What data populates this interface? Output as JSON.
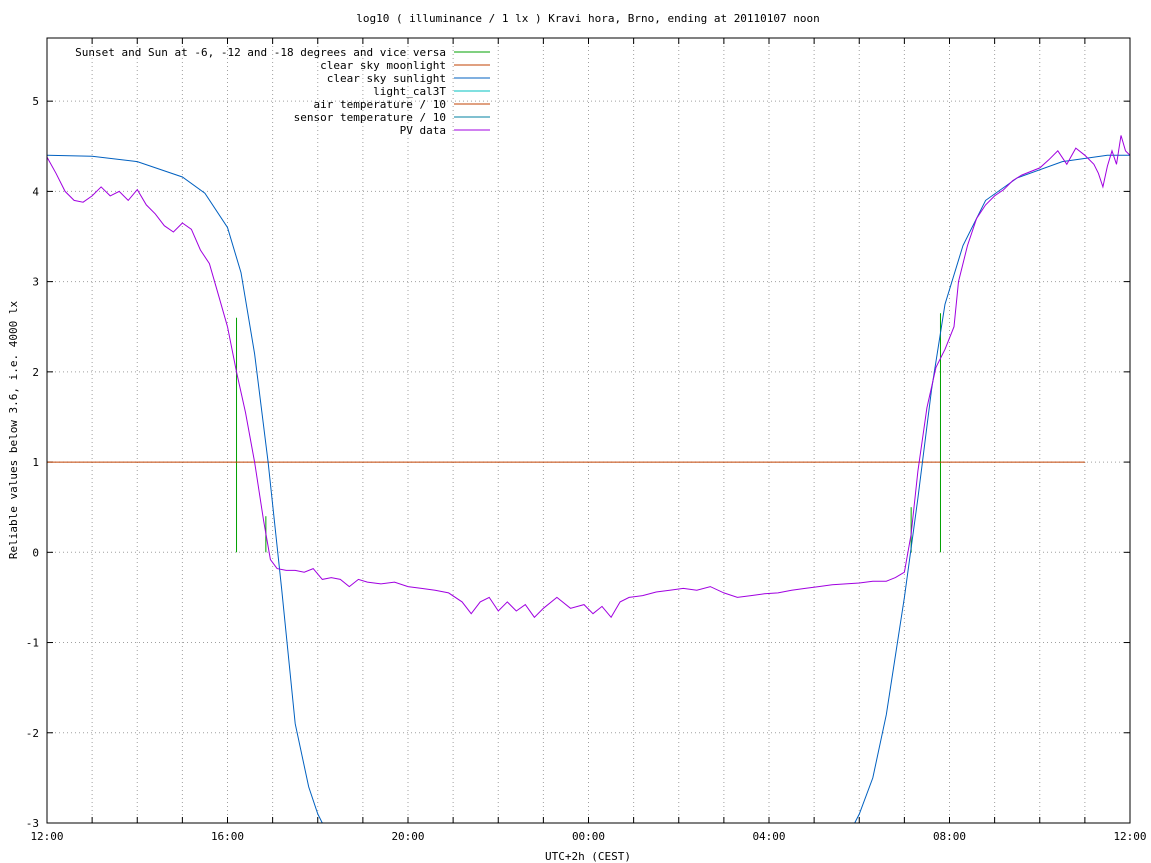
{
  "chart_data": {
    "type": "line",
    "title": "log10 ( illuminance / 1 lx ) Kravi hora, Brno, ending at 20110107 noon",
    "xlabel": "UTC+2h (CEST)",
    "ylabel": "Reliable values below 3.6, i.e. 4000 lx",
    "xlim": [
      12,
      36
    ],
    "ylim": [
      -3,
      5.7
    ],
    "grid": true,
    "legend_position": "top-left",
    "x_ticks": [
      {
        "value": 12,
        "label": "12:00"
      },
      {
        "value": 16,
        "label": "16:00"
      },
      {
        "value": 20,
        "label": "20:00"
      },
      {
        "value": 24,
        "label": "00:00"
      },
      {
        "value": 28,
        "label": "04:00"
      },
      {
        "value": 32,
        "label": "08:00"
      },
      {
        "value": 36,
        "label": "12:00"
      }
    ],
    "x_minor_ticks": [
      13,
      14,
      15,
      17,
      18,
      19,
      21,
      22,
      23,
      25,
      26,
      27,
      29,
      30,
      31,
      33,
      34,
      35
    ],
    "y_ticks": [
      {
        "value": -3,
        "label": "-3"
      },
      {
        "value": -2,
        "label": "-2"
      },
      {
        "value": -1,
        "label": "-1"
      },
      {
        "value": 0,
        "label": "0"
      },
      {
        "value": 1,
        "label": "1"
      },
      {
        "value": 2,
        "label": "2"
      },
      {
        "value": 3,
        "label": "3"
      },
      {
        "value": 4,
        "label": "4"
      },
      {
        "value": 5,
        "label": "5"
      }
    ],
    "series": [
      {
        "name": "Sunset and Sun at -6, -12 and -18 degrees and vice versa",
        "color": "#00a000",
        "kind": "impulses",
        "points": [
          [
            16.2,
            2.6
          ],
          [
            16.85,
            0.4
          ],
          [
            17.5,
            0
          ],
          [
            18.15,
            0
          ],
          [
            29.85,
            0
          ],
          [
            30.5,
            0
          ],
          [
            31.15,
            0.5
          ],
          [
            31.8,
            2.65
          ]
        ]
      },
      {
        "name": "clear sky moonlight",
        "color": "#c04000",
        "kind": "line",
        "points": [
          [
            12,
            1
          ],
          [
            35.0,
            1
          ]
        ]
      },
      {
        "name": "clear sky sunlight",
        "color": "#0060c0",
        "kind": "line",
        "points": [
          [
            12,
            4.4
          ],
          [
            13,
            4.39
          ],
          [
            14,
            4.33
          ],
          [
            15,
            4.16
          ],
          [
            15.5,
            3.98
          ],
          [
            16,
            3.6
          ],
          [
            16.3,
            3.1
          ],
          [
            16.6,
            2.2
          ],
          [
            16.9,
            1.0
          ],
          [
            17.2,
            -0.4
          ],
          [
            17.5,
            -1.9
          ],
          [
            17.8,
            -2.6
          ],
          [
            18.0,
            -2.9
          ],
          [
            18.1,
            -3.0
          ]
        ]
      },
      {
        "name": "clear sky sunlight",
        "color": "#0060c0",
        "kind": "line",
        "points": [
          [
            29.9,
            -3.0
          ],
          [
            30.0,
            -2.9
          ],
          [
            30.3,
            -2.5
          ],
          [
            30.6,
            -1.8
          ],
          [
            31.0,
            -0.5
          ],
          [
            31.3,
            0.6
          ],
          [
            31.6,
            1.8
          ],
          [
            31.9,
            2.75
          ],
          [
            32.3,
            3.4
          ],
          [
            32.8,
            3.9
          ],
          [
            33.5,
            4.15
          ],
          [
            34.5,
            4.33
          ],
          [
            35.5,
            4.4
          ],
          [
            36,
            4.4
          ]
        ]
      },
      {
        "name": "light_cal3T",
        "color": "#00c0c0",
        "kind": "line",
        "points": []
      },
      {
        "name": "air temperature / 10",
        "color": "#c04000",
        "kind": "line",
        "points": []
      },
      {
        "name": "sensor temperature / 10",
        "color": "#0080a0",
        "kind": "line",
        "points": []
      },
      {
        "name": "PV data",
        "color": "#a000e0",
        "kind": "line",
        "points": [
          [
            12.0,
            4.38
          ],
          [
            12.2,
            4.2
          ],
          [
            12.4,
            4.0
          ],
          [
            12.6,
            3.9
          ],
          [
            12.8,
            3.88
          ],
          [
            13.0,
            3.95
          ],
          [
            13.2,
            4.05
          ],
          [
            13.4,
            3.95
          ],
          [
            13.6,
            4.0
          ],
          [
            13.8,
            3.9
          ],
          [
            14.0,
            4.02
          ],
          [
            14.2,
            3.85
          ],
          [
            14.4,
            3.75
          ],
          [
            14.6,
            3.62
          ],
          [
            14.8,
            3.55
          ],
          [
            15.0,
            3.65
          ],
          [
            15.2,
            3.58
          ],
          [
            15.4,
            3.35
          ],
          [
            15.6,
            3.2
          ],
          [
            15.8,
            2.85
          ],
          [
            16.0,
            2.5
          ],
          [
            16.2,
            2.0
          ],
          [
            16.4,
            1.55
          ],
          [
            16.6,
            1.0
          ],
          [
            16.8,
            0.35
          ],
          [
            16.95,
            -0.08
          ],
          [
            17.1,
            -0.18
          ],
          [
            17.3,
            -0.2
          ],
          [
            17.5,
            -0.2
          ],
          [
            17.7,
            -0.22
          ],
          [
            17.9,
            -0.18
          ],
          [
            18.1,
            -0.3
          ],
          [
            18.3,
            -0.28
          ],
          [
            18.5,
            -0.3
          ],
          [
            18.7,
            -0.38
          ],
          [
            18.9,
            -0.3
          ],
          [
            19.1,
            -0.33
          ],
          [
            19.4,
            -0.35
          ],
          [
            19.7,
            -0.33
          ],
          [
            20.0,
            -0.38
          ],
          [
            20.3,
            -0.4
          ],
          [
            20.6,
            -0.42
          ],
          [
            20.9,
            -0.45
          ],
          [
            21.2,
            -0.55
          ],
          [
            21.4,
            -0.68
          ],
          [
            21.6,
            -0.55
          ],
          [
            21.8,
            -0.5
          ],
          [
            22.0,
            -0.65
          ],
          [
            22.2,
            -0.55
          ],
          [
            22.4,
            -0.65
          ],
          [
            22.6,
            -0.58
          ],
          [
            22.8,
            -0.72
          ],
          [
            23.0,
            -0.62
          ],
          [
            23.3,
            -0.5
          ],
          [
            23.6,
            -0.62
          ],
          [
            23.9,
            -0.58
          ],
          [
            24.1,
            -0.68
          ],
          [
            24.3,
            -0.6
          ],
          [
            24.5,
            -0.72
          ],
          [
            24.7,
            -0.55
          ],
          [
            24.9,
            -0.5
          ],
          [
            25.2,
            -0.48
          ],
          [
            25.5,
            -0.44
          ],
          [
            25.8,
            -0.42
          ],
          [
            26.1,
            -0.4
          ],
          [
            26.4,
            -0.42
          ],
          [
            26.7,
            -0.38
          ],
          [
            27.0,
            -0.45
          ],
          [
            27.3,
            -0.5
          ],
          [
            27.6,
            -0.48
          ],
          [
            27.9,
            -0.46
          ],
          [
            28.2,
            -0.45
          ],
          [
            28.5,
            -0.42
          ],
          [
            28.8,
            -0.4
          ],
          [
            29.1,
            -0.38
          ],
          [
            29.4,
            -0.36
          ],
          [
            29.7,
            -0.35
          ],
          [
            30.0,
            -0.34
          ],
          [
            30.3,
            -0.32
          ],
          [
            30.6,
            -0.32
          ],
          [
            30.8,
            -0.28
          ],
          [
            31.0,
            -0.22
          ],
          [
            31.15,
            0.2
          ],
          [
            31.3,
            0.9
          ],
          [
            31.5,
            1.6
          ],
          [
            31.7,
            2.05
          ],
          [
            31.9,
            2.25
          ],
          [
            32.1,
            2.5
          ],
          [
            32.2,
            3.0
          ],
          [
            32.4,
            3.4
          ],
          [
            32.6,
            3.7
          ],
          [
            32.8,
            3.85
          ],
          [
            33.0,
            3.95
          ],
          [
            33.2,
            4.02
          ],
          [
            33.4,
            4.12
          ],
          [
            33.6,
            4.18
          ],
          [
            33.8,
            4.22
          ],
          [
            34.0,
            4.26
          ],
          [
            34.2,
            4.35
          ],
          [
            34.4,
            4.45
          ],
          [
            34.6,
            4.3
          ],
          [
            34.8,
            4.48
          ],
          [
            35.0,
            4.4
          ],
          [
            35.2,
            4.3
          ],
          [
            35.3,
            4.2
          ],
          [
            35.4,
            4.05
          ],
          [
            35.5,
            4.28
          ],
          [
            35.6,
            4.45
          ],
          [
            35.7,
            4.3
          ],
          [
            35.8,
            4.62
          ],
          [
            35.9,
            4.45
          ],
          [
            36.0,
            4.4
          ]
        ]
      }
    ]
  }
}
